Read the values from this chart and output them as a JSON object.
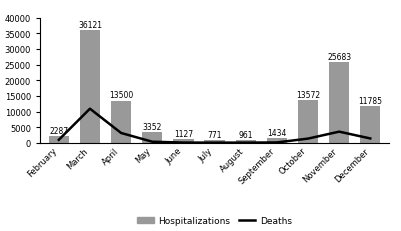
{
  "months": [
    "February",
    "March",
    "April",
    "May",
    "June",
    "July",
    "August",
    "September",
    "October",
    "November",
    "December"
  ],
  "hospitalizations": [
    2287,
    36121,
    13500,
    3352,
    1127,
    771,
    961,
    1434,
    13572,
    25683,
    11785
  ],
  "deaths": [
    969,
    10901,
    3153,
    357,
    87,
    68,
    73,
    128,
    1354,
    3574,
    1401
  ],
  "bar_color": "#999999",
  "line_color": "#000000",
  "ylim": [
    0,
    40000
  ],
  "yticks": [
    0,
    5000,
    10000,
    15000,
    20000,
    25000,
    30000,
    35000,
    40000
  ],
  "label_hospitalizations": "Hospitalizations",
  "label_deaths": "Deaths",
  "bar_label_fontsize": 5.5,
  "tick_fontsize": 6.0,
  "legend_fontsize": 6.5,
  "background_color": "#ffffff"
}
